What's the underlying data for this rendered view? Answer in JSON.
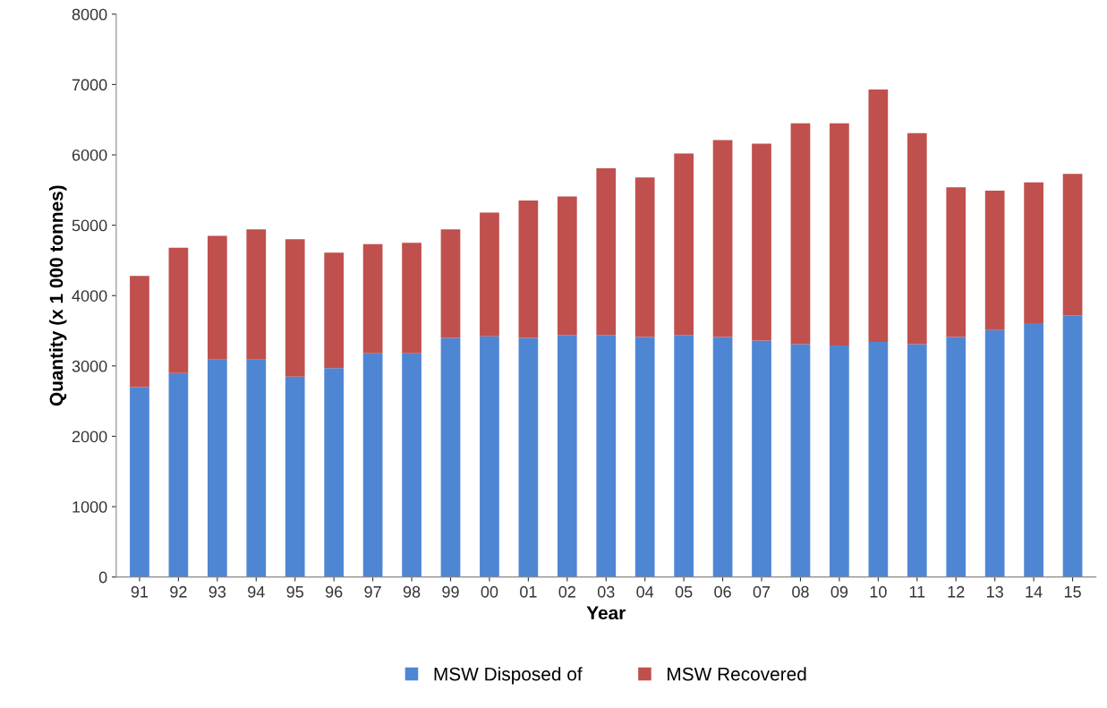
{
  "chart_data": {
    "type": "bar",
    "stacked": true,
    "xlabel": "Year",
    "ylabel": "Quantity (x 1 000 tonnes)",
    "categories": [
      "91",
      "92",
      "93",
      "94",
      "95",
      "96",
      "97",
      "98",
      "99",
      "00",
      "01",
      "02",
      "03",
      "04",
      "05",
      "06",
      "07",
      "08",
      "09",
      "10",
      "11",
      "12",
      "13",
      "14",
      "15"
    ],
    "series": [
      {
        "name": "MSW Disposed of",
        "color": "#4f86d4",
        "values": [
          2700,
          2900,
          3090,
          3090,
          2850,
          2970,
          3180,
          3180,
          3400,
          3420,
          3400,
          3440,
          3440,
          3410,
          3440,
          3410,
          3360,
          3310,
          3290,
          3340,
          3310,
          3410,
          3510,
          3610,
          3720
        ]
      },
      {
        "name": "MSW Recovered",
        "color": "#c0504d",
        "values": [
          1580,
          1780,
          1760,
          1850,
          1950,
          1640,
          1550,
          1570,
          1540,
          1760,
          1950,
          1970,
          2370,
          2270,
          2580,
          2800,
          2800,
          3140,
          3160,
          3590,
          3000,
          2130,
          1980,
          2000,
          2010
        ]
      }
    ],
    "ylim": [
      0,
      8000
    ],
    "yticks": [
      0,
      1000,
      2000,
      3000,
      4000,
      5000,
      6000,
      7000,
      8000
    ],
    "grid": false,
    "legend": "bottom"
  }
}
